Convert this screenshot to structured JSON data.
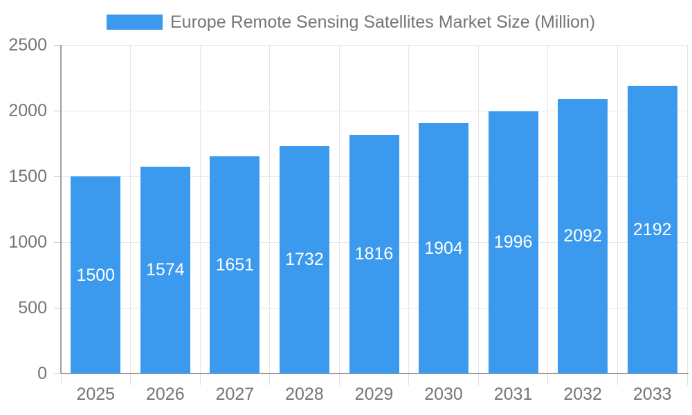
{
  "legend": {
    "label": "Europe Remote Sensing Satellites Market Size (Million)"
  },
  "chart_data": {
    "type": "bar",
    "title": "Europe Remote Sensing Satellites Market Size (Million)",
    "series_name": "Europe Remote Sensing Satellites Market Size (Million)",
    "categories": [
      "2025",
      "2026",
      "2027",
      "2028",
      "2029",
      "2030",
      "2031",
      "2032",
      "2033"
    ],
    "values": [
      1500,
      1574,
      1651,
      1732,
      1816,
      1904,
      1996,
      2092,
      2192
    ],
    "bar_value_labels": [
      "1500",
      "1574",
      "1651",
      "1732",
      "1816",
      "1904",
      "1996",
      "2092",
      "2192"
    ],
    "ylim": [
      0,
      2500
    ],
    "yticks": [
      0,
      500,
      1000,
      1500,
      2000,
      2500
    ],
    "ytick_labels": [
      "0",
      "500",
      "1000",
      "1500",
      "2000",
      "2500"
    ],
    "xlabel": "",
    "ylabel": "",
    "grid": true,
    "legend_position": "top"
  },
  "colors": {
    "bar": "#3B99EE",
    "text": "#757575",
    "bar_label": "#FFFFFF",
    "gridline": "#E6E6E6",
    "axis_line": "#9E9E9E",
    "tick_y": "#C9C9C9",
    "tick_x": "#E0E0E0"
  }
}
